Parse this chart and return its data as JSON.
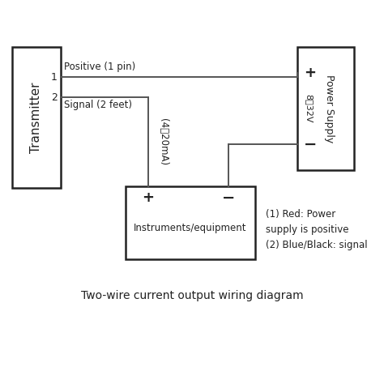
{
  "bg_color": "#ffffff",
  "title": "Two-wire current output wiring diagram",
  "title_fontsize": 10,
  "transmitter_label": "Transmitter",
  "power_supply_label": "Power Supply",
  "power_supply_voltage": "8～32V",
  "instrument_label": "Instruments/equipment",
  "pin1_label": "1",
  "pin2_label": "2",
  "positive_label": "Positive (1 pin)",
  "signal_label": "Signal (2 feet)",
  "current_label": "(4～20mA)",
  "ps_plus_label": "+",
  "ps_minus_label": "−",
  "inst_plus_label": "+",
  "inst_minus_label": "−",
  "note_text": "(1) Red: Power\nsupply is positive\n(2) Blue/Black: signal",
  "note_fontsize": 8.5,
  "line_color": "#555555",
  "box_line_color": "#222222",
  "text_color": "#222222"
}
